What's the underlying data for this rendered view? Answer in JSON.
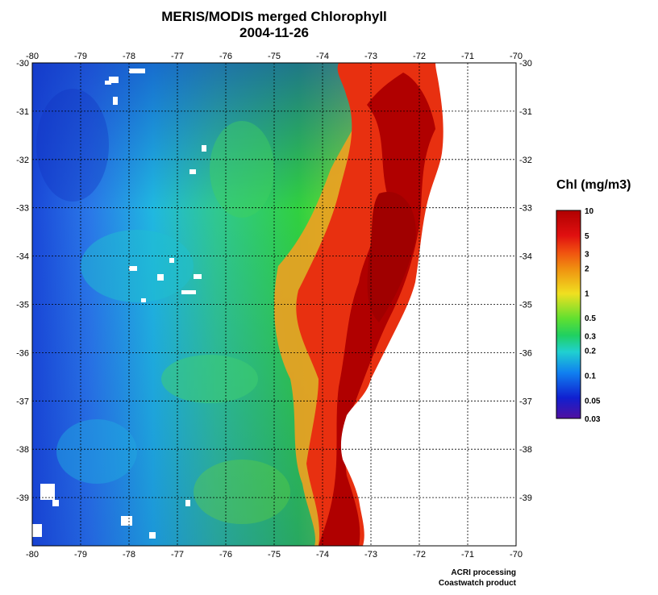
{
  "title": {
    "line1": "MERIS/MODIS merged Chlorophyll",
    "line2": "2004-11-26"
  },
  "map": {
    "lon_range": [
      -80,
      -70
    ],
    "lat_range": [
      -40,
      -30
    ],
    "lon_ticks": [
      "-80",
      "-79",
      "-78",
      "-77",
      "-76",
      "-75",
      "-74",
      "-73",
      "-72",
      "-71",
      "-70"
    ],
    "lat_ticks": [
      "-30",
      "-31",
      "-32",
      "-33",
      "-34",
      "-35",
      "-36",
      "-37",
      "-38",
      "-39"
    ],
    "grid": "dotted",
    "land_color": "#ffffff",
    "colors": {
      "deep_blue": "#1030d0",
      "blue": "#2a78e8",
      "cyan": "#20c0e0",
      "green": "#30d040",
      "yellow": "#f0e020",
      "orange": "#f07010",
      "red": "#d01010",
      "dark_red": "#b00000"
    }
  },
  "legend": {
    "title": "Chl (mg/m3)",
    "labels": [
      "10",
      "5",
      "3",
      "2",
      "1",
      "0.5",
      "0.3",
      "0.2",
      "0.1",
      "0.05",
      "0.03"
    ],
    "colors": [
      "#b00000",
      "#e01010",
      "#f05010",
      "#f09010",
      "#f0e020",
      "#60e030",
      "#20d060",
      "#20d0d0",
      "#1080f0",
      "#1020d0",
      "#5010a0"
    ]
  },
  "credit": {
    "line1": "ACRI processing",
    "line2": "Coastwatch product"
  }
}
